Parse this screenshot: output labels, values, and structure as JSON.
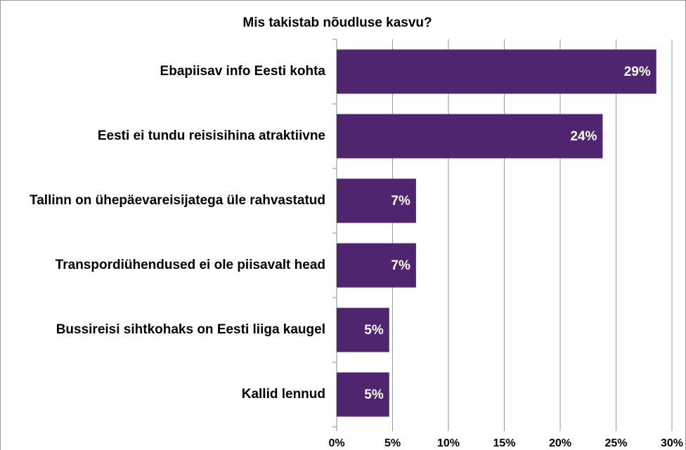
{
  "chart_data": {
    "type": "bar",
    "orientation": "horizontal",
    "title": "Mis takistab nõudluse kasvu?",
    "categories": [
      "Ebapiisav info Eesti kohta",
      "Eesti ei tundu reisisihina atraktiivne",
      "Tallinn on ühepäevareisijatega üle rahvastatud",
      "Transpordiühendused ei ole piisavalt head",
      "Bussireisi sihtkohaks on Eesti liiga kaugel",
      "Kallid lennud"
    ],
    "values": [
      28.6,
      23.8,
      7.1,
      7.1,
      4.7,
      4.7
    ],
    "value_labels": [
      "29%",
      "24%",
      "7%",
      "7%",
      "5%",
      "5%"
    ],
    "color": "#4f256f",
    "xlim": [
      0,
      30
    ],
    "xticks": [
      {
        "value": 0,
        "label": "0%"
      },
      {
        "value": 5,
        "label": "5%"
      },
      {
        "value": 10,
        "label": "10%"
      },
      {
        "value": 15,
        "label": "15%"
      },
      {
        "value": 20,
        "label": "20%"
      },
      {
        "value": 25,
        "label": "25%"
      },
      {
        "value": 30,
        "label": "30%"
      }
    ],
    "grid": true
  }
}
